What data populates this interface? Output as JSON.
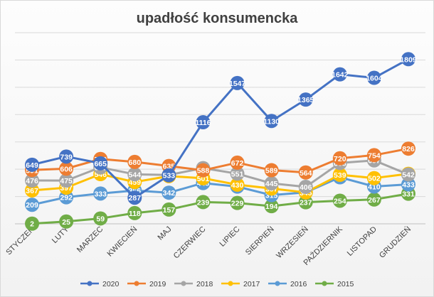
{
  "chart_data": {
    "type": "line",
    "title": "upadłość konsumencka",
    "categories": [
      "STYCZEŃ",
      "LUTY",
      "MARZEC",
      "KWIECIEŃ",
      "MAJ",
      "CZERWIEC",
      "LIPIEC",
      "SIERPIEŃ",
      "WRZESIEŃ",
      "PAŹDZIERNIK",
      "LISTOPAD",
      "GRUDZIEŃ"
    ],
    "xlabel": "",
    "ylabel": "",
    "ylim": [
      0,
      2100
    ],
    "grid": true,
    "legend_position": "bottom",
    "series": [
      {
        "name": "2020",
        "color": "#4472c4",
        "values": [
          649,
          739,
          665,
          287,
          533,
          1116,
          1547,
          1130,
          1365,
          1642,
          1604,
          1809
        ]
      },
      {
        "name": "2019",
        "color": "#ed7d31",
        "values": [
          591,
          606,
          712,
          680,
          635,
          588,
          672,
          589,
          564,
          720,
          754,
          826
        ]
      },
      {
        "name": "2018",
        "color": "#a5a5a5",
        "values": [
          476,
          475,
          620,
          544,
          537,
          612,
          551,
          445,
          406,
          668,
          697,
          542
        ]
      },
      {
        "name": "2017",
        "color": "#ffc000",
        "values": [
          367,
          397,
          546,
          459,
          524,
          501,
          430,
          387,
          345,
          539,
          502,
          549
        ]
      },
      {
        "name": "2016",
        "color": "#5b9bd5",
        "values": [
          209,
          292,
          333,
          366,
          342,
          448,
          409,
          315,
          345,
          511,
          410,
          433
        ]
      },
      {
        "name": "2015",
        "color": "#70ad47",
        "values": [
          2,
          25,
          59,
          118,
          157,
          239,
          229,
          194,
          237,
          254,
          267,
          331
        ]
      }
    ]
  }
}
